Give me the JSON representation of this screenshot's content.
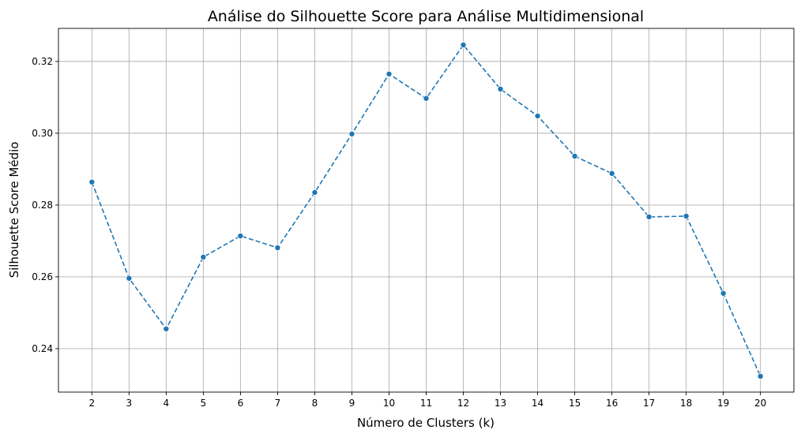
{
  "chart_data": {
    "type": "line",
    "title": "Análise do Silhouette Score para Análise Multidimensional",
    "xlabel": "Número de Clusters (k)",
    "ylabel": "Silhouette Score Médio",
    "x": [
      2,
      3,
      4,
      5,
      6,
      7,
      8,
      9,
      10,
      11,
      12,
      13,
      14,
      15,
      16,
      17,
      18,
      19,
      20
    ],
    "series": [
      {
        "values": [
          0.2864,
          0.2596,
          0.2455,
          0.2655,
          0.2714,
          0.2681,
          0.2835,
          0.2998,
          0.3165,
          0.3097,
          0.3246,
          0.3123,
          0.3048,
          0.2936,
          0.2888,
          0.2767,
          0.2769,
          0.2554,
          0.2323
        ],
        "color": "#1f77b4",
        "linestyle": "dashed",
        "marker": "circle"
      }
    ],
    "xticks": [
      "2",
      "3",
      "4",
      "5",
      "6",
      "7",
      "8",
      "9",
      "10",
      "11",
      "12",
      "13",
      "14",
      "15",
      "16",
      "17",
      "18",
      "19",
      "20"
    ],
    "yticks": [
      "0.24",
      "0.26",
      "0.28",
      "0.30",
      "0.32"
    ],
    "ytick_values": [
      0.24,
      0.26,
      0.28,
      0.3,
      0.32
    ],
    "xlim": [
      1.1,
      20.9
    ],
    "ylim": [
      0.2279,
      0.3292
    ],
    "grid": true
  }
}
